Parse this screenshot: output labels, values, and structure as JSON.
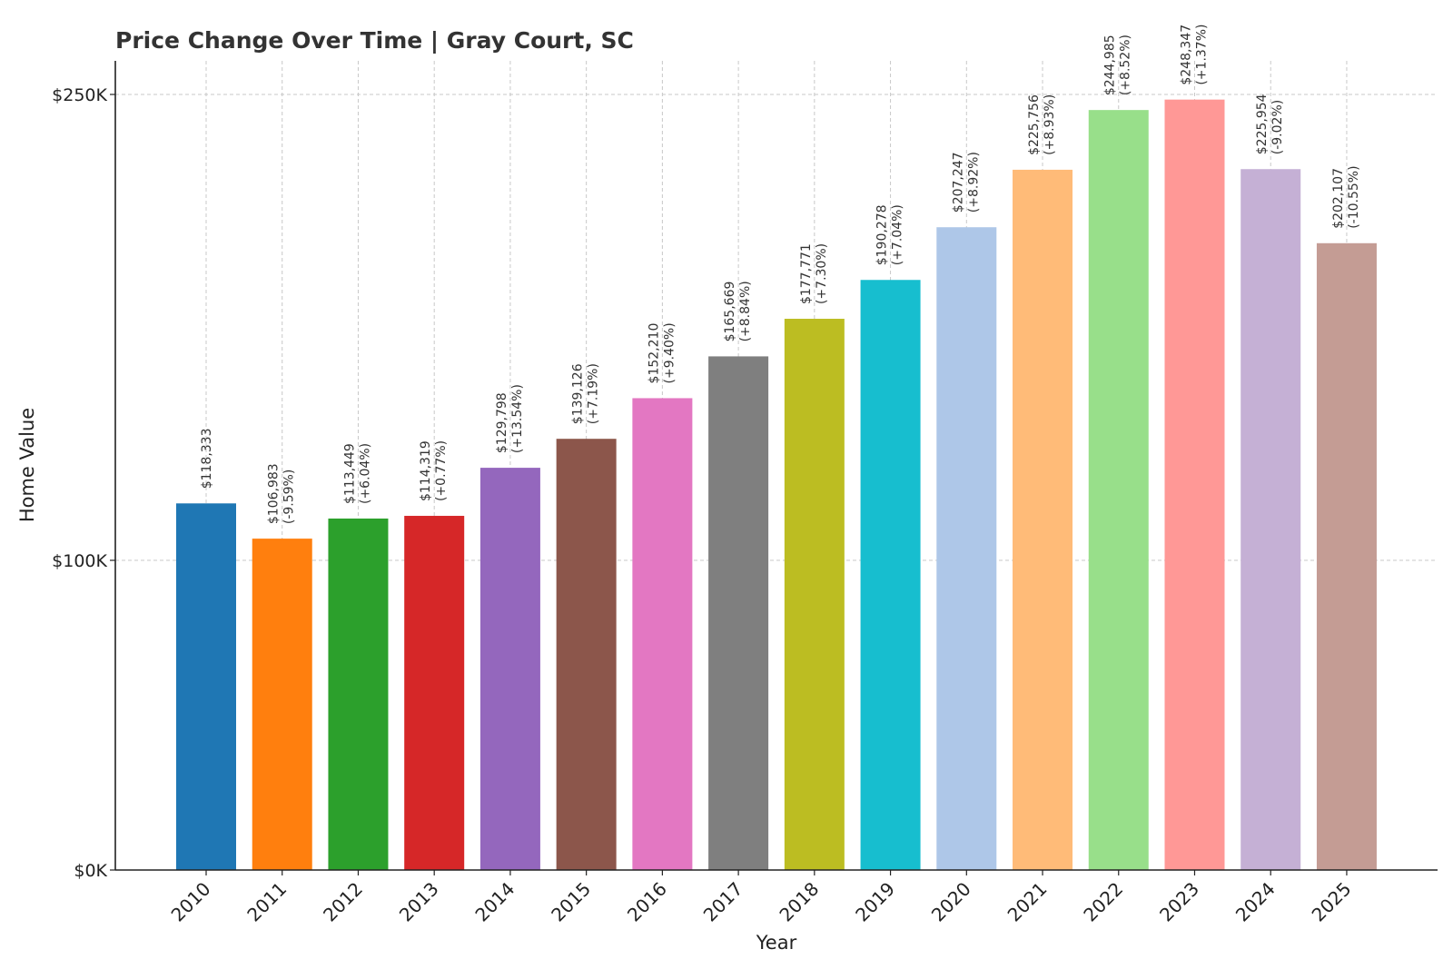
{
  "chart_data": {
    "type": "bar",
    "title": "Price Change Over Time | Gray Court, SC",
    "xlabel": "Year",
    "ylabel": "Home Value",
    "categories": [
      "2010",
      "2011",
      "2012",
      "2013",
      "2014",
      "2015",
      "2016",
      "2017",
      "2018",
      "2019",
      "2020",
      "2021",
      "2022",
      "2023",
      "2024",
      "2025"
    ],
    "values": [
      118333,
      106983,
      113449,
      114319,
      129798,
      139126,
      152210,
      165669,
      177771,
      190278,
      207247,
      225756,
      244985,
      248347,
      225954,
      202107
    ],
    "value_labels": [
      "$118,333",
      "$106,983",
      "$113,449",
      "$114,319",
      "$129,798",
      "$139,126",
      "$152,210",
      "$165,669",
      "$177,771",
      "$190,278",
      "$207,247",
      "$225,756",
      "$244,985",
      "$248,347",
      "$225,954",
      "$202,107"
    ],
    "change_labels": [
      "",
      "(-9.59%)",
      "(+6.04%)",
      "(+0.77%)",
      "(+13.54%)",
      "(+7.19%)",
      "(+9.40%)",
      "(+8.84%)",
      "(+7.30%)",
      "(+7.04%)",
      "(+8.92%)",
      "(+8.93%)",
      "(+8.52%)",
      "(+1.37%)",
      "(-9.02%)",
      "(-10.55%)"
    ],
    "colors": [
      "#1f77b4",
      "#ff7f0e",
      "#2ca02c",
      "#d62728",
      "#9467bd",
      "#8c564b",
      "#e377c2",
      "#7f7f7f",
      "#bcbd22",
      "#17becf",
      "#aec7e8",
      "#ffbb78",
      "#98df8a",
      "#ff9896",
      "#c5b0d5",
      "#c49c94"
    ],
    "yticks": [
      0,
      100000,
      250000
    ],
    "ytick_labels": [
      "$0K",
      "$100K",
      "$250K"
    ],
    "ylim": [
      0,
      260000
    ],
    "grid": true
  }
}
